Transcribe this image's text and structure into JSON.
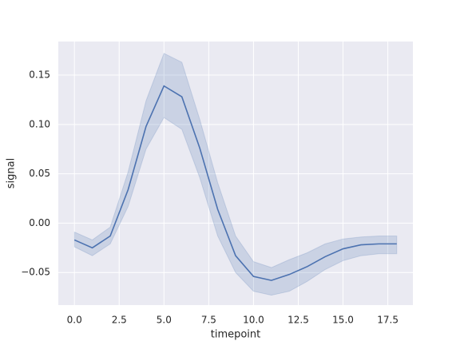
{
  "chart_data": {
    "type": "line",
    "x_label": "timepoint",
    "y_label": "signal",
    "x": [
      0,
      1,
      2,
      3,
      4,
      5,
      6,
      7,
      8,
      9,
      10,
      11,
      12,
      13,
      14,
      15,
      16,
      17,
      18
    ],
    "values": [
      -0.017,
      -0.025,
      -0.013,
      0.034,
      0.098,
      0.139,
      0.128,
      0.076,
      0.014,
      -0.033,
      -0.054,
      -0.058,
      -0.052,
      -0.044,
      -0.034,
      -0.026,
      -0.022,
      -0.021,
      -0.021
    ],
    "ci_lower": [
      -0.024,
      -0.033,
      -0.021,
      0.017,
      0.075,
      0.107,
      0.095,
      0.046,
      -0.013,
      -0.05,
      -0.069,
      -0.073,
      -0.069,
      -0.059,
      -0.047,
      -0.038,
      -0.033,
      -0.031,
      -0.031
    ],
    "ci_upper": [
      -0.009,
      -0.017,
      -0.004,
      0.052,
      0.124,
      0.172,
      0.163,
      0.105,
      0.041,
      -0.013,
      -0.039,
      -0.045,
      -0.037,
      -0.03,
      -0.021,
      -0.016,
      -0.014,
      -0.013,
      -0.013
    ],
    "color": "#4c72b0",
    "xlim": [
      -0.9,
      18.9
    ],
    "xticks": [
      {
        "value": 0,
        "label": "0.0"
      },
      2.5,
      {
        "value": 5,
        "label": "5.0"
      },
      7.5,
      {
        "value": 10,
        "label": "10.0"
      },
      12.5,
      {
        "value": 15,
        "label": "15.0"
      },
      17.5
    ],
    "ylim": [
      -0.083,
      0.184
    ],
    "yticks": [
      {
        "value": -0.05,
        "label": "−0.05"
      },
      {
        "value": 0,
        "label": "0.00"
      },
      0.05,
      {
        "value": 0.1,
        "label": "0.10"
      },
      0.15
    ],
    "grid": true
  }
}
